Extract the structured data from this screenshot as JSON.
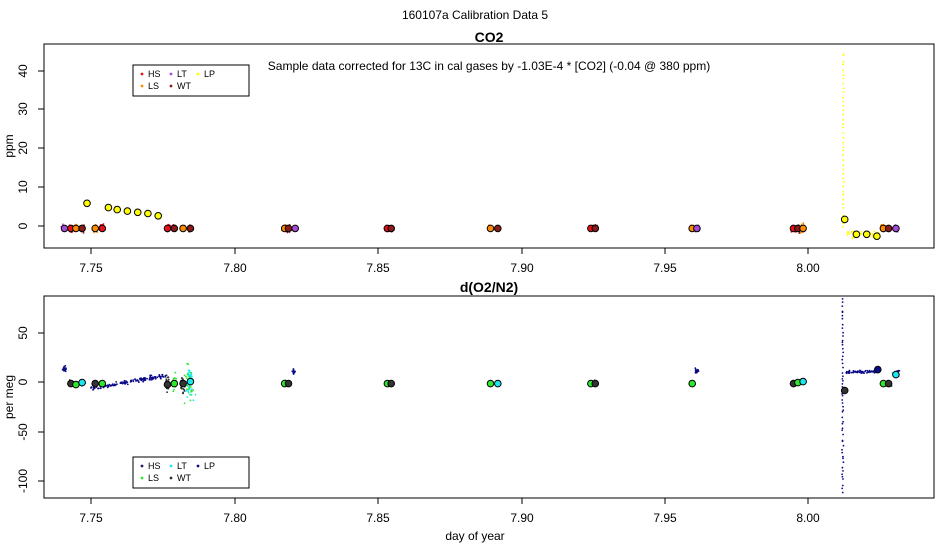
{
  "figure": {
    "title": "160107a   Calibration Data 5"
  },
  "legend_labels": [
    "HS",
    "LS",
    "LT",
    "WT",
    "LP"
  ],
  "colors": {
    "HS": "#e8101a",
    "LS": "#ff8c00",
    "LT": "#a64ad8",
    "WT": "#8b1a1a",
    "LP": "#ffff00",
    "HS_o2": "#1a1a6e",
    "LS_o2": "#2ee82e",
    "LT_o2": "#19e8f0",
    "WT_o2": "#333333",
    "LP_o2": "#0b0b8a"
  },
  "chart_data": [
    {
      "type": "scatter",
      "title": "CO2",
      "ylabel": "ppm",
      "xlabel": "",
      "annotation": "Sample data corrected for 13C in cal gases by -1.03E-4 * [CO2] (-0.04 @ 380 ppm)",
      "xlim": [
        7.7395,
        8.0435
      ],
      "ylim": [
        -5,
        47
      ],
      "x_ticks": [
        "7.75",
        "7.80",
        "7.85",
        "7.90",
        "7.95",
        "8.00"
      ],
      "y_ticks": [
        "0",
        "10",
        "20",
        "30",
        "40"
      ],
      "grid": false,
      "legend_position": "top-left",
      "means": [
        {
          "x": 7.7465,
          "y": 0.0,
          "cal": "LT"
        },
        {
          "x": 7.7487,
          "y": 0.0,
          "cal": "HS"
        },
        {
          "x": 7.7504,
          "y": 0.0,
          "cal": "LS"
        },
        {
          "x": 7.7525,
          "y": 0.0,
          "cal": "WT"
        },
        {
          "x": 7.7542,
          "y": 6.4,
          "cal": "LP"
        },
        {
          "x": 7.757,
          "y": 0.0,
          "cal": "LS"
        },
        {
          "x": 7.7594,
          "y": 0.0,
          "cal": "HS"
        },
        {
          "x": 7.7615,
          "y": 5.3,
          "cal": "LP"
        },
        {
          "x": 7.7645,
          "y": 4.8,
          "cal": "LP"
        },
        {
          "x": 7.768,
          "y": 4.4,
          "cal": "LP"
        },
        {
          "x": 7.7715,
          "y": 4.1,
          "cal": "LP"
        },
        {
          "x": 7.775,
          "y": 3.8,
          "cal": "LP"
        },
        {
          "x": 7.7785,
          "y": 3.2,
          "cal": "LP"
        },
        {
          "x": 7.7817,
          "y": 0.0,
          "cal": "HS"
        },
        {
          "x": 7.784,
          "y": 0.0,
          "cal": "WT"
        },
        {
          "x": 7.787,
          "y": 0.0,
          "cal": "LS"
        },
        {
          "x": 7.7895,
          "y": 0.0,
          "cal": "WT"
        },
        {
          "x": 7.8217,
          "y": 0.0,
          "cal": "LS"
        },
        {
          "x": 7.823,
          "y": 0.0,
          "cal": "WT"
        },
        {
          "x": 7.8253,
          "y": 0.0,
          "cal": "LT"
        },
        {
          "x": 7.8568,
          "y": 0.0,
          "cal": "HS"
        },
        {
          "x": 7.8581,
          "y": 0.0,
          "cal": "WT"
        },
        {
          "x": 7.892,
          "y": 0.0,
          "cal": "LS"
        },
        {
          "x": 7.8945,
          "y": 0.0,
          "cal": "WT"
        },
        {
          "x": 7.9263,
          "y": 0.0,
          "cal": "HS"
        },
        {
          "x": 7.9278,
          "y": 0.0,
          "cal": "WT"
        },
        {
          "x": 7.9609,
          "y": 0.0,
          "cal": "LS"
        },
        {
          "x": 7.9625,
          "y": 0.0,
          "cal": "LT"
        },
        {
          "x": 7.9955,
          "y": 0.0,
          "cal": "HS"
        },
        {
          "x": 7.997,
          "y": 0.0,
          "cal": "WT"
        },
        {
          "x": 7.9988,
          "y": 0.0,
          "cal": "LS"
        },
        {
          "x": 8.013,
          "y": 2.3,
          "cal": "LP"
        },
        {
          "x": 8.017,
          "y": -1.5,
          "cal": "LP"
        },
        {
          "x": 8.0205,
          "y": -1.5,
          "cal": "LP"
        },
        {
          "x": 8.024,
          "y": -2.0,
          "cal": "LP"
        },
        {
          "x": 8.0262,
          "y": 0.0,
          "cal": "LS"
        },
        {
          "x": 8.028,
          "y": 0.0,
          "cal": "WT"
        },
        {
          "x": 8.0305,
          "y": 0.0,
          "cal": "LT"
        }
      ]
    },
    {
      "type": "scatter",
      "title": "d(O2/N2)",
      "ylabel": "per meg",
      "xlabel": "day of year",
      "xlim": [
        7.7395,
        8.0435
      ],
      "ylim": [
        -115,
        88
      ],
      "x_ticks": [
        "7.75",
        "7.80",
        "7.85",
        "7.90",
        "7.95",
        "8.00"
      ],
      "y_ticks": [
        "-100",
        "-50",
        "0",
        "50"
      ],
      "grid": false,
      "legend_position": "bottom-left",
      "means": [
        {
          "x": 7.7487,
          "y": 0.0,
          "cal": "WT"
        },
        {
          "x": 7.7504,
          "y": -1.0,
          "cal": "LS"
        },
        {
          "x": 7.7525,
          "y": 1.0,
          "cal": "LT"
        },
        {
          "x": 7.757,
          "y": 0.0,
          "cal": "WT"
        },
        {
          "x": 7.7594,
          "y": 0.0,
          "cal": "LS"
        },
        {
          "x": 7.7817,
          "y": -1.0,
          "cal": "WT"
        },
        {
          "x": 7.784,
          "y": 0.0,
          "cal": "LS"
        },
        {
          "x": 7.787,
          "y": 0.0,
          "cal": "WT"
        },
        {
          "x": 7.7895,
          "y": 2.0,
          "cal": "LT"
        },
        {
          "x": 7.8217,
          "y": 0.0,
          "cal": "LS"
        },
        {
          "x": 7.823,
          "y": 0.0,
          "cal": "WT"
        },
        {
          "x": 7.8568,
          "y": 0.0,
          "cal": "LS"
        },
        {
          "x": 7.8581,
          "y": 0.0,
          "cal": "WT"
        },
        {
          "x": 7.892,
          "y": 0.0,
          "cal": "LS"
        },
        {
          "x": 7.8945,
          "y": 0.0,
          "cal": "LT"
        },
        {
          "x": 7.9263,
          "y": 0.0,
          "cal": "LS"
        },
        {
          "x": 7.9278,
          "y": 0.0,
          "cal": "WT"
        },
        {
          "x": 7.9609,
          "y": 0.0,
          "cal": "LS"
        },
        {
          "x": 7.9955,
          "y": 0.0,
          "cal": "WT"
        },
        {
          "x": 7.997,
          "y": 1.0,
          "cal": "LS"
        },
        {
          "x": 7.9988,
          "y": 2.0,
          "cal": "LT"
        },
        {
          "x": 8.013,
          "y": -7.0,
          "cal": "WT"
        },
        {
          "x": 8.0243,
          "y": 14.0,
          "cal": "LP"
        },
        {
          "x": 8.0262,
          "y": 0.0,
          "cal": "LS"
        },
        {
          "x": 8.028,
          "y": 0.0,
          "cal": "WT"
        },
        {
          "x": 8.0305,
          "y": 9.0,
          "cal": "LT"
        }
      ]
    }
  ]
}
